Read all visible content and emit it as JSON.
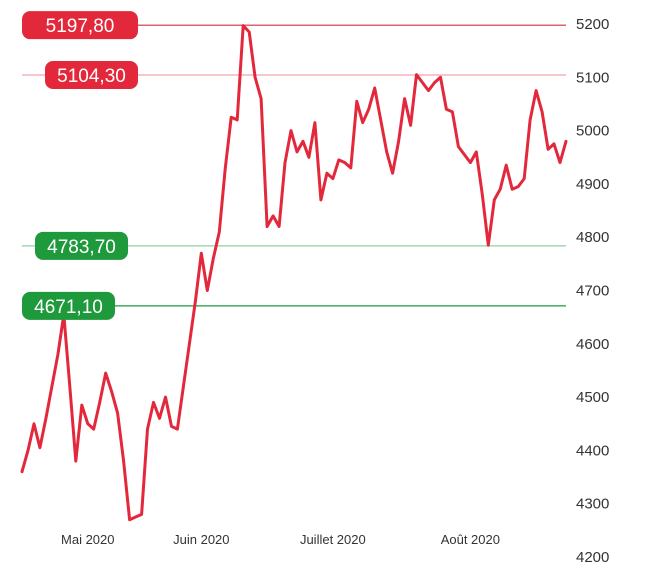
{
  "chart_data": {
    "type": "line",
    "title": "",
    "xlabel": "",
    "ylabel": "",
    "ylim": [
      4200,
      5200
    ],
    "y_ticks": [
      "5200",
      "5100",
      "5000",
      "4900",
      "4800",
      "4700",
      "4600",
      "4500",
      "4400",
      "4300",
      "4200"
    ],
    "x_ticks": [
      {
        "label": "Mai 2020",
        "index": 11
      },
      {
        "label": "Juin 2020",
        "index": 30
      },
      {
        "label": "Juillet 2020",
        "index": 52
      },
      {
        "label": "Août 2020",
        "index": 75
      }
    ],
    "grid": false,
    "series": [
      {
        "color": "#e4283c",
        "values": [
          4360,
          4400,
          4450,
          4405,
          4460,
          4520,
          4580,
          4655,
          4520,
          4380,
          4485,
          4450,
          4440,
          4490,
          4545,
          4510,
          4470,
          4380,
          4270,
          4275,
          4280,
          4440,
          4490,
          4460,
          4500,
          4445,
          4440,
          4520,
          4600,
          4680,
          4770,
          4700,
          4760,
          4810,
          4930,
          5025,
          5020,
          5197,
          5185,
          5100,
          5060,
          4820,
          4840,
          4820,
          4940,
          5000,
          4960,
          4980,
          4950,
          5015,
          4870,
          4920,
          4910,
          4945,
          4940,
          4930,
          5055,
          5015,
          5040,
          5080,
          5020,
          4960,
          4920,
          4980,
          5060,
          5010,
          5105,
          5090,
          5075,
          5090,
          5100,
          5040,
          5035,
          4970,
          4955,
          4940,
          4960,
          4880,
          4785,
          4870,
          4890,
          4935,
          4890,
          4895,
          4910,
          5020,
          5075,
          5035,
          4965,
          4975,
          4940,
          4980
        ]
      }
    ],
    "levels": [
      {
        "value": 5197.8,
        "label": "5197,80",
        "kind": "resistance",
        "line_color": "#d92b3a",
        "badge_color": "#e4283c"
      },
      {
        "value": 5104.3,
        "label": "5104,30",
        "kind": "resistance",
        "line_color": "#f0a4ac",
        "badge_color": "#e4283c"
      },
      {
        "value": 4783.7,
        "label": "4783,70",
        "kind": "support",
        "line_color": "#8fd19e",
        "badge_color": "#1e9a3c"
      },
      {
        "value": 4671.1,
        "label": "4671,10",
        "kind": "support",
        "line_color": "#1e9a3c",
        "badge_color": "#1e9a3c"
      }
    ]
  }
}
